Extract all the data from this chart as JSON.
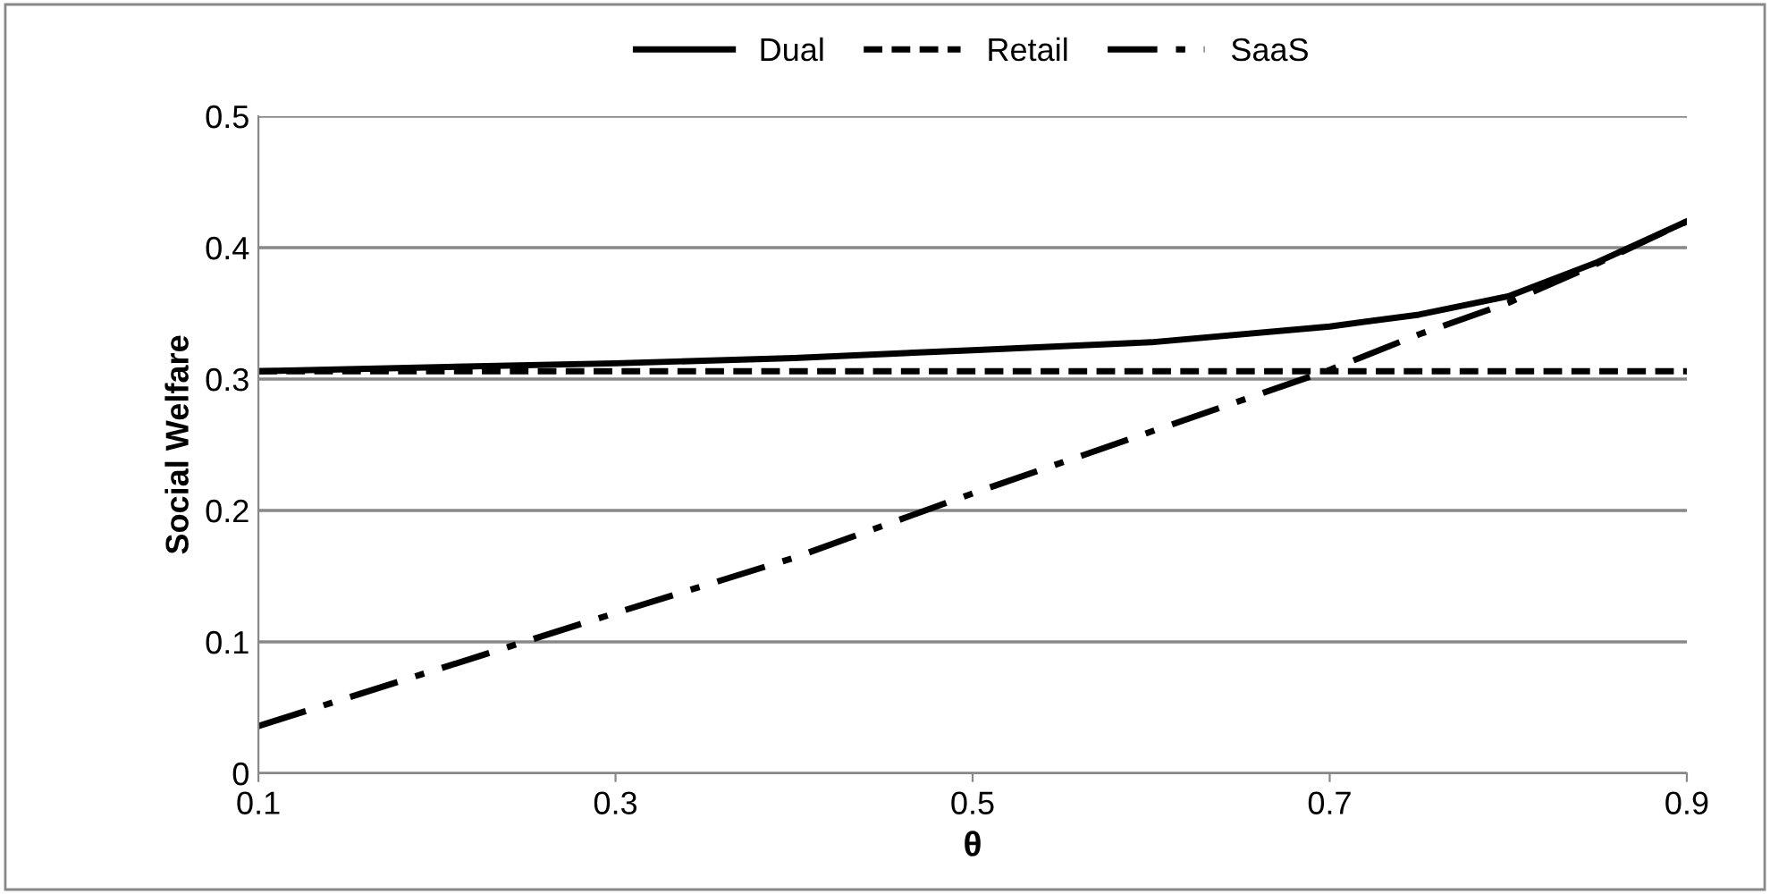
{
  "chart_data": {
    "type": "line",
    "xlabel": "θ",
    "ylabel": "Social Welfare",
    "xlim": [
      0.1,
      0.9
    ],
    "xticks": [
      0.1,
      0.3,
      0.5,
      0.7,
      0.9
    ],
    "ylim": [
      0,
      0.5
    ],
    "yticks": [
      0,
      0.1,
      0.2,
      0.3,
      0.4,
      0.5
    ],
    "x": [
      0.1,
      0.2,
      0.3,
      0.4,
      0.5,
      0.6,
      0.7,
      0.75,
      0.8,
      0.85,
      0.9
    ],
    "series": [
      {
        "name": "Dual",
        "color": "#000000",
        "line_style": "solid",
        "values": [
          0.306,
          0.309,
          0.312,
          0.316,
          0.322,
          0.328,
          0.34,
          0.349,
          0.363,
          0.389,
          0.42
        ]
      },
      {
        "name": "Retail",
        "color": "#000000",
        "line_style": "dashed",
        "values": [
          0.306,
          0.306,
          0.306,
          0.306,
          0.306,
          0.306,
          0.306,
          0.306,
          0.306,
          0.306,
          0.306
        ]
      },
      {
        "name": "SaaS",
        "color": "#000000",
        "line_style": "dashdot",
        "values": [
          0.036,
          0.079,
          0.122,
          0.164,
          0.213,
          0.26,
          0.307,
          0.334,
          0.358,
          0.388,
          0.42
        ]
      }
    ],
    "grid": "y",
    "legend": "top",
    "marker": "none"
  }
}
